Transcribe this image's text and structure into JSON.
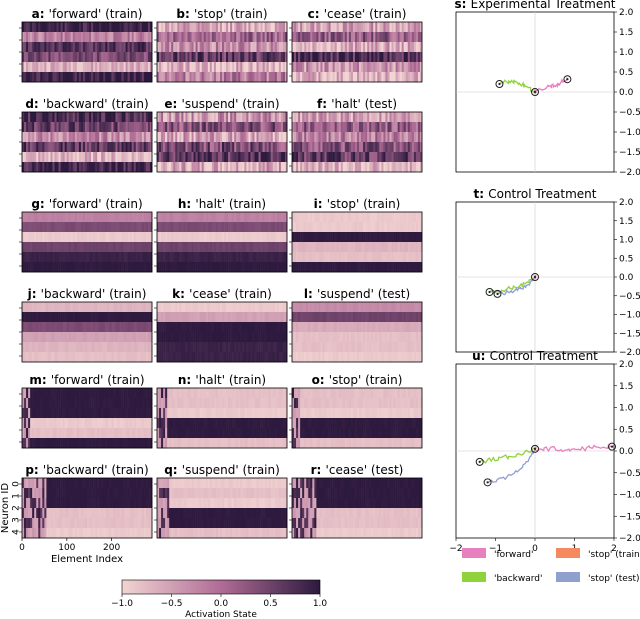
{
  "heatmaps": [
    {
      "id": "a",
      "label": "a",
      "word": "'forward'",
      "set": "train",
      "grid": 0,
      "row": 0,
      "col": 0,
      "seed": 11,
      "noise": 0.35,
      "startup": 0,
      "levels": [
        0.9,
        -0.2,
        0.7,
        0.4,
        -0.6,
        0.9
      ]
    },
    {
      "id": "b",
      "label": "b",
      "word": "'stop'",
      "set": "train",
      "grid": 0,
      "row": 0,
      "col": 1,
      "seed": 12,
      "noise": 0.5,
      "startup": 0,
      "levels": [
        -0.6,
        0.1,
        -0.3,
        0.6,
        -0.7,
        -0.2
      ]
    },
    {
      "id": "c",
      "label": "c",
      "word": "'cease'",
      "set": "train",
      "grid": 0,
      "row": 0,
      "col": 2,
      "seed": 13,
      "noise": 0.5,
      "startup": 0,
      "levels": [
        -0.5,
        0.2,
        -0.6,
        0.8,
        -0.4,
        -0.7
      ]
    },
    {
      "id": "d",
      "label": "d",
      "word": "'backward'",
      "set": "train",
      "grid": 0,
      "row": 1,
      "col": 0,
      "seed": 14,
      "noise": 0.45,
      "startup": 0,
      "levels": [
        0.8,
        0.5,
        -0.3,
        0.6,
        -0.7,
        0.9
      ]
    },
    {
      "id": "e",
      "label": "e",
      "word": "'suspend'",
      "set": "train",
      "grid": 0,
      "row": 1,
      "col": 1,
      "seed": 15,
      "noise": 0.55,
      "startup": 0,
      "levels": [
        -0.4,
        0.3,
        -0.5,
        0.4,
        0.7,
        -0.6
      ]
    },
    {
      "id": "f",
      "label": "f",
      "word": "'halt'",
      "set": "test",
      "grid": 0,
      "row": 1,
      "col": 2,
      "seed": 16,
      "noise": 0.5,
      "startup": 0,
      "levels": [
        -0.5,
        0.2,
        -0.2,
        0.3,
        0.6,
        -0.7
      ]
    },
    {
      "id": "g",
      "label": "g",
      "word": "'forward'",
      "set": "train",
      "grid": 1,
      "row": 0,
      "col": 0,
      "seed": 21,
      "noise": 0.05,
      "startup": 0,
      "levels": [
        -0.2,
        0.4,
        -0.9,
        0.5,
        0.9,
        1.0
      ]
    },
    {
      "id": "h",
      "label": "h",
      "word": "'halt'",
      "set": "train",
      "grid": 1,
      "row": 0,
      "col": 1,
      "seed": 22,
      "noise": 0.05,
      "startup": 0,
      "levels": [
        -0.2,
        0.4,
        -0.9,
        0.5,
        0.9,
        1.0
      ]
    },
    {
      "id": "i",
      "label": "i",
      "word": "'stop'",
      "set": "train",
      "grid": 1,
      "row": 0,
      "col": 2,
      "seed": 23,
      "noise": 0.05,
      "startup": 0,
      "levels": [
        -0.9,
        -0.9,
        1.0,
        -0.7,
        -0.8,
        1.0
      ]
    },
    {
      "id": "j",
      "label": "j",
      "word": "'backward'",
      "set": "train",
      "grid": 1,
      "row": 1,
      "col": 0,
      "seed": 24,
      "noise": 0.05,
      "startup": 0,
      "levels": [
        -0.7,
        1.0,
        0.4,
        -0.5,
        -0.7,
        -0.8
      ]
    },
    {
      "id": "k",
      "label": "k",
      "word": "'cease'",
      "set": "train",
      "grid": 1,
      "row": 1,
      "col": 1,
      "seed": 25,
      "noise": 0.05,
      "startup": 0,
      "levels": [
        -0.9,
        -0.5,
        1.0,
        1.0,
        0.9,
        0.9
      ]
    },
    {
      "id": "l",
      "label": "l",
      "word": "'suspend'",
      "set": "test",
      "grid": 1,
      "row": 1,
      "col": 2,
      "seed": 26,
      "noise": 0.05,
      "startup": 0,
      "levels": [
        -0.3,
        0.5,
        -0.6,
        -0.8,
        -0.8,
        -0.9
      ]
    },
    {
      "id": "m",
      "label": "m",
      "word": "'forward'",
      "set": "train",
      "grid": 2,
      "row": 0,
      "col": 0,
      "seed": 31,
      "noise": 0.05,
      "startup": 0.06,
      "levels": [
        1.0,
        1.0,
        1.0,
        -0.9,
        -0.8,
        1.0
      ]
    },
    {
      "id": "n",
      "label": "n",
      "word": "'halt'",
      "set": "train",
      "grid": 2,
      "row": 0,
      "col": 1,
      "seed": 32,
      "noise": 0.05,
      "startup": 0.08,
      "levels": [
        -0.8,
        -0.8,
        -0.9,
        1.0,
        1.0,
        -0.8
      ]
    },
    {
      "id": "o",
      "label": "o",
      "word": "'stop'",
      "set": "train",
      "grid": 2,
      "row": 0,
      "col": 2,
      "seed": 33,
      "noise": 0.05,
      "startup": 0.06,
      "levels": [
        -0.8,
        -0.8,
        -0.9,
        1.0,
        1.0,
        -0.8
      ]
    },
    {
      "id": "p",
      "label": "p",
      "word": "'backward'",
      "set": "train",
      "grid": 2,
      "row": 1,
      "col": 0,
      "seed": 34,
      "noise": 0.05,
      "startup": 0.18,
      "levels": [
        1.0,
        1.0,
        1.0,
        -0.8,
        -0.8,
        -0.9
      ]
    },
    {
      "id": "q",
      "label": "q",
      "word": "'suspend'",
      "set": "train",
      "grid": 2,
      "row": 1,
      "col": 1,
      "seed": 35,
      "noise": 0.05,
      "startup": 0.1,
      "levels": [
        -0.9,
        -0.8,
        -0.9,
        1.0,
        1.0,
        -0.8
      ]
    },
    {
      "id": "r",
      "label": "r",
      "word": "'cease'",
      "set": "test",
      "grid": 2,
      "row": 1,
      "col": 2,
      "seed": 36,
      "noise": 0.05,
      "startup": 0.18,
      "levels": [
        1.0,
        1.0,
        1.0,
        -0.8,
        -0.8,
        -0.9
      ]
    }
  ],
  "heatmap_axes": {
    "xlabel": "Element Index",
    "ylabel": "Neuron ID",
    "xticks": [
      0,
      100,
      200
    ],
    "xmax": 290,
    "yticks": [
      "0",
      "1",
      "2",
      "3",
      "4"
    ]
  },
  "colorbar": {
    "label": "Activation State",
    "ticks": [
      "−1.0",
      "−0.5",
      "0.0",
      "0.5",
      "1.0"
    ],
    "low_color": "#f2d4d2",
    "high_color": "#2d1a3e"
  },
  "chart_data": [
    {
      "type": "line",
      "id": "s",
      "label": "s",
      "title": "Experimental Treatment",
      "xlim": [
        -2,
        2
      ],
      "ylim": [
        -2,
        2
      ],
      "yticks": [
        "2.0",
        "1.5",
        "1.0",
        "0.5",
        "0.0",
        "−0.5",
        "−1.0",
        "−1.5",
        "−2.0"
      ],
      "series": [
        {
          "name": "'forward'",
          "color": "#e87fbf",
          "points": [
            [
              0.0,
              0.0
            ],
            [
              0.15,
              0.05
            ],
            [
              0.3,
              0.1
            ],
            [
              0.45,
              0.15
            ],
            [
              0.6,
              0.2
            ],
            [
              0.75,
              0.3
            ],
            [
              0.82,
              0.32
            ]
          ]
        },
        {
          "name": "'backward'",
          "color": "#8fd23c",
          "points": [
            [
              0.0,
              0.0
            ],
            [
              -0.15,
              0.1
            ],
            [
              -0.35,
              0.2
            ],
            [
              -0.55,
              0.25
            ],
            [
              -0.75,
              0.25
            ],
            [
              -0.9,
              0.2
            ]
          ]
        },
        {
          "name": "'stop' (test)",
          "color": "#8f9fce",
          "points": [
            [
              0.0,
              0.0
            ],
            [
              0.02,
              0.02
            ]
          ]
        },
        {
          "name": "'stop' (train)",
          "color": "#f58a5f",
          "points": [
            [
              0.0,
              0.0
            ],
            [
              0.01,
              0.01
            ]
          ]
        }
      ],
      "markers": [
        [
          0.82,
          0.32
        ],
        [
          -0.9,
          0.2
        ],
        [
          0.0,
          0.0
        ]
      ]
    },
    {
      "type": "line",
      "id": "t",
      "label": "t",
      "title": "Control Treatment",
      "xlim": [
        -2,
        2
      ],
      "ylim": [
        -2,
        2
      ],
      "yticks": [
        "2.0",
        "1.5",
        "1.0",
        "0.5",
        "0.0",
        "−0.5",
        "−1.0",
        "−1.5",
        "−2.0"
      ],
      "series": [
        {
          "name": "'backward'",
          "color": "#8fd23c",
          "points": [
            [
              0.0,
              0.0
            ],
            [
              -0.2,
              -0.15
            ],
            [
              -0.45,
              -0.25
            ],
            [
              -0.7,
              -0.32
            ],
            [
              -0.95,
              -0.38
            ],
            [
              -1.15,
              -0.4
            ]
          ]
        },
        {
          "name": "'stop' (test)",
          "color": "#8f9fce",
          "points": [
            [
              0.0,
              0.0
            ],
            [
              -0.15,
              -0.2
            ],
            [
              -0.35,
              -0.3
            ],
            [
              -0.55,
              -0.38
            ],
            [
              -0.75,
              -0.42
            ],
            [
              -0.95,
              -0.45
            ]
          ]
        },
        {
          "name": "'stop' (train)",
          "color": "#f58a5f",
          "points": [
            [
              0.0,
              0.0
            ],
            [
              0.02,
              0.01
            ]
          ]
        },
        {
          "name": "'forward'",
          "color": "#e87fbf",
          "points": [
            [
              0.0,
              0.0
            ],
            [
              0.01,
              0.0
            ]
          ]
        }
      ],
      "markers": [
        [
          -1.15,
          -0.4
        ],
        [
          -0.95,
          -0.45
        ],
        [
          0.0,
          0.0
        ]
      ]
    },
    {
      "type": "line",
      "id": "u",
      "label": "u",
      "title": "Control Treatment",
      "xlim": [
        -2,
        2
      ],
      "ylim": [
        -2,
        2
      ],
      "xticks": [
        "−2",
        "−1",
        "0",
        "1",
        "2"
      ],
      "yticks": [
        "2.0",
        "1.5",
        "1.0",
        "0.5",
        "0.0",
        "−0.5",
        "−1.0",
        "−1.5",
        "−2.0"
      ],
      "series": [
        {
          "name": "'forward'",
          "color": "#e87fbf",
          "points": [
            [
              0.0,
              0.05
            ],
            [
              0.3,
              0.05
            ],
            [
              0.6,
              0.05
            ],
            [
              0.9,
              0.0
            ],
            [
              1.2,
              0.05
            ],
            [
              1.5,
              0.08
            ],
            [
              1.8,
              0.08
            ],
            [
              1.95,
              0.1
            ]
          ]
        },
        {
          "name": "'backward'",
          "color": "#8fd23c",
          "points": [
            [
              0.0,
              0.05
            ],
            [
              -0.25,
              -0.02
            ],
            [
              -0.5,
              -0.1
            ],
            [
              -0.8,
              -0.15
            ],
            [
              -1.1,
              -0.2
            ],
            [
              -1.4,
              -0.25
            ]
          ]
        },
        {
          "name": "'stop' (test)",
          "color": "#8f9fce",
          "points": [
            [
              0.0,
              0.05
            ],
            [
              -0.15,
              -0.2
            ],
            [
              -0.35,
              -0.4
            ],
            [
              -0.6,
              -0.55
            ],
            [
              -0.9,
              -0.65
            ],
            [
              -1.2,
              -0.72
            ]
          ]
        },
        {
          "name": "'stop' (train)",
          "color": "#f58a5f",
          "points": [
            [
              0.0,
              0.05
            ],
            [
              0.02,
              0.06
            ]
          ]
        }
      ],
      "markers": [
        [
          1.95,
          0.1
        ],
        [
          -1.4,
          -0.25
        ],
        [
          -1.2,
          -0.72
        ],
        [
          0.0,
          0.05
        ]
      ]
    }
  ],
  "legend": [
    {
      "name": "'forward'",
      "color": "#e87fbf"
    },
    {
      "name": "'stop' (train)",
      "color": "#f58a5f"
    },
    {
      "name": "'backward'",
      "color": "#8fd23c"
    },
    {
      "name": "'stop' (test)",
      "color": "#8f9fce"
    }
  ]
}
